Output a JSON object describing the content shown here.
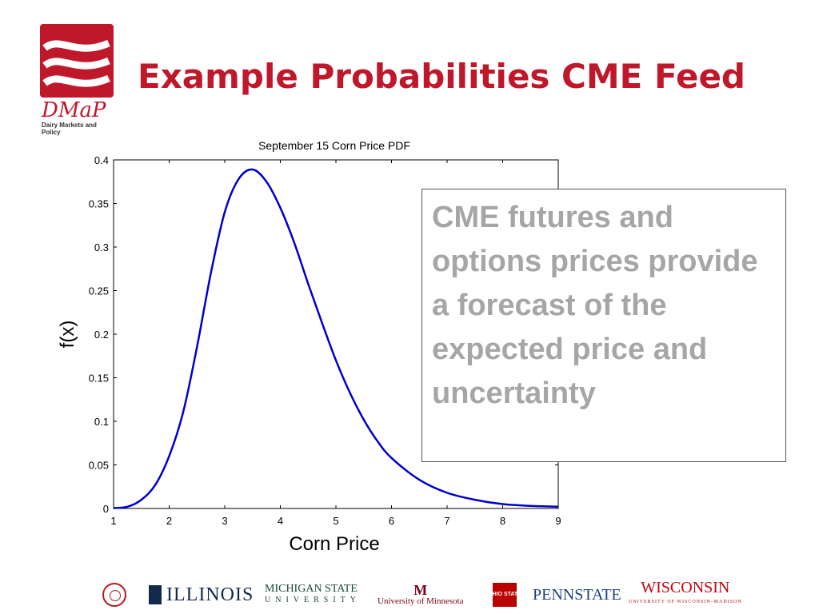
{
  "slide": {
    "title": "Example Probabilities CME Feed",
    "logo": {
      "name": "DMaP",
      "subtitle": "Dairy Markets and Policy"
    },
    "callout": "CME futures and options prices provide a forecast of the expected price and uncertainty"
  },
  "chart_data": {
    "type": "line",
    "title": "September 15 Corn Price PDF",
    "xlabel": "Corn Price",
    "ylabel": "f(x)",
    "xlim": [
      1,
      9
    ],
    "ylim": [
      0,
      0.4
    ],
    "xticks": [
      "1",
      "2",
      "3",
      "4",
      "5",
      "6",
      "7",
      "8",
      "9"
    ],
    "yticks": [
      "0",
      "0.05",
      "0.1",
      "0.15",
      "0.2",
      "0.25",
      "0.3",
      "0.35",
      "0.4"
    ],
    "grid": false,
    "series": [
      {
        "color": "#0000cc",
        "x": [
          1.0,
          1.25,
          1.5,
          1.75,
          2.0,
          2.25,
          2.5,
          2.75,
          3.0,
          3.25,
          3.5,
          3.75,
          4.0,
          4.25,
          4.5,
          4.75,
          5.0,
          5.25,
          5.5,
          5.75,
          6.0,
          6.5,
          7.0,
          7.5,
          8.0,
          8.5,
          9.0
        ],
        "y": [
          0.0005,
          0.002,
          0.01,
          0.027,
          0.06,
          0.11,
          0.185,
          0.27,
          0.34,
          0.378,
          0.389,
          0.375,
          0.345,
          0.305,
          0.258,
          0.213,
          0.17,
          0.133,
          0.102,
          0.077,
          0.058,
          0.033,
          0.018,
          0.01,
          0.005,
          0.003,
          0.002
        ]
      }
    ]
  },
  "footer": {
    "universities": [
      "ILLINOIS",
      "MICHIGAN STATE",
      "UNIVERSITY",
      "University of Minnesota",
      "OHIO STATE",
      "PENNSTATE",
      "WISCONSIN",
      "UNIVERSITY OF WISCONSIN–MADISON"
    ]
  },
  "colors": {
    "brand": "#c0182b",
    "curve": "#0000cc",
    "callout_text": "#a6a6a6"
  }
}
